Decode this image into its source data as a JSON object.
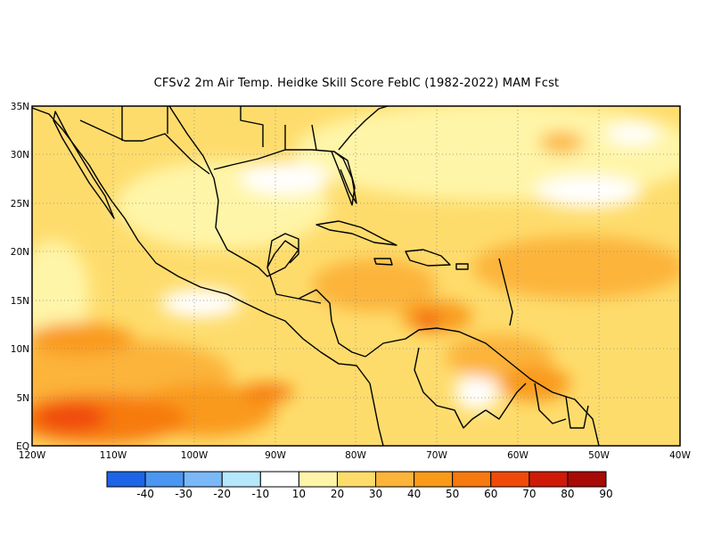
{
  "title": "CFSv2  2m Air Temp. Heidke Skill Score FebIC (1982-2022) MAM Fcst",
  "lat_labels": [
    "35N",
    "30N",
    "25N",
    "20N",
    "15N",
    "10N",
    "5N",
    "EQ"
  ],
  "lon_labels": [
    "120W",
    "110W",
    "100W",
    "90W",
    "80W",
    "70W",
    "60W",
    "50W",
    "40W"
  ],
  "colorbar": {
    "labels": [
      "-40",
      "-30",
      "-20",
      "-10",
      "10",
      "20",
      "30",
      "40",
      "50",
      "60",
      "70",
      "80",
      "90"
    ],
    "colors": [
      "#1e64e6",
      "#4a96f0",
      "#7ab8f8",
      "#b4e8fa",
      "#ffffff",
      "#fff5a8",
      "#fedc6c",
      "#fcb43a",
      "#f99a1a",
      "#f77a10",
      "#f04a0a",
      "#cf1a08",
      "#a80a05"
    ]
  }
}
